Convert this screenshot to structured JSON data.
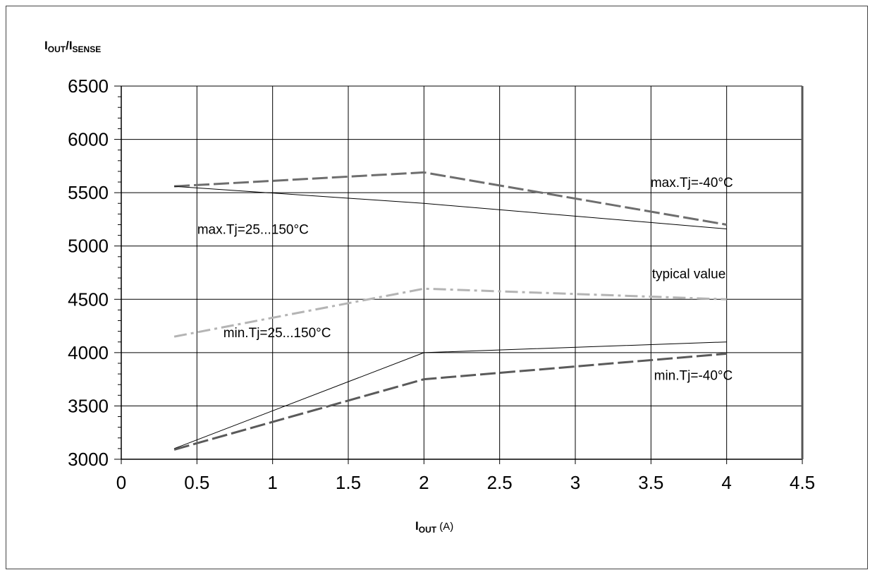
{
  "chart_data": {
    "type": "line",
    "title": "",
    "ylabel": {
      "main1": "I",
      "sub1": "OUT",
      "slash": "/",
      "main2": "I",
      "sub2": "SENSE"
    },
    "xlabel": {
      "main": "I",
      "sub": "OUT",
      "unit": " (A)"
    },
    "xlim": [
      0,
      4.5
    ],
    "ylim": [
      3000,
      6500
    ],
    "xticks": [
      "0",
      "0.5",
      "1",
      "1.5",
      "2",
      "2.5",
      "3",
      "3.5",
      "4",
      "4.5"
    ],
    "yticks": [
      "3000",
      "3500",
      "4000",
      "4500",
      "5000",
      "5500",
      "6000",
      "6500"
    ],
    "grid": true,
    "series": [
      {
        "name": "max.Tj=-40°C",
        "style": "dashed",
        "color": "#6e6e6e",
        "x": [
          0.35,
          2,
          4
        ],
        "y": [
          5560,
          5690,
          5200
        ]
      },
      {
        "name": "max.Tj=25...150°C",
        "style": "solid-thin",
        "color": "#000000",
        "x": [
          0.35,
          2,
          4
        ],
        "y": [
          5560,
          5400,
          5160
        ]
      },
      {
        "name": "typical value",
        "style": "dashdot",
        "color": "#b4b4b4",
        "x": [
          0.35,
          2,
          4
        ],
        "y": [
          4150,
          4600,
          4500
        ]
      },
      {
        "name": "min.Tj=25...150°C",
        "style": "solid-thin",
        "color": "#000000",
        "x": [
          0.35,
          2,
          4
        ],
        "y": [
          3100,
          4000,
          4100
        ]
      },
      {
        "name": "min.Tj=-40°C",
        "style": "dashed",
        "color": "#5a5a5a",
        "x": [
          0.35,
          2,
          4
        ],
        "y": [
          3090,
          3750,
          3990
        ]
      }
    ],
    "annotations": [
      {
        "name": "annotation-max-minus40",
        "text": "max.Tj=-40°C",
        "x": 3.77,
        "y": 5600
      },
      {
        "name": "annotation-max-25-150",
        "text": "max.Tj=25...150°C",
        "x": 0.87,
        "y": 5160
      },
      {
        "name": "annotation-typical",
        "text": "typical value",
        "x": 3.75,
        "y": 4745
      },
      {
        "name": "annotation-min-25-150",
        "text": "min.Tj=25...150°C",
        "x": 1.03,
        "y": 4190
      },
      {
        "name": "annotation-min-minus40",
        "text": "min.Tj=-40°C",
        "x": 3.78,
        "y": 3790
      }
    ]
  }
}
